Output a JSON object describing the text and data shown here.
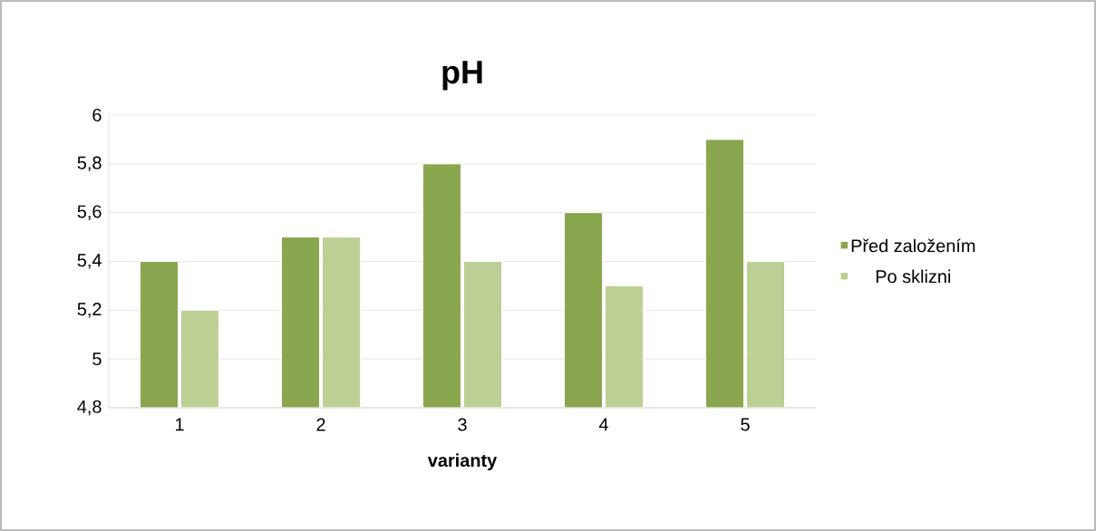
{
  "chart_data": {
    "type": "bar",
    "title": "pH",
    "xlabel": "varianty",
    "categories": [
      "1",
      "2",
      "3",
      "4",
      "5"
    ],
    "series": [
      {
        "name": "Před založením",
        "color": "#8aa64f",
        "values": [
          5.4,
          5.5,
          5.8,
          5.6,
          5.9
        ]
      },
      {
        "name": "Po sklizni",
        "color": "#bcd096",
        "values": [
          5.2,
          5.5,
          5.4,
          5.3,
          5.4
        ]
      }
    ],
    "ylim": [
      4.8,
      6
    ],
    "yticks": [
      {
        "value": 4.8,
        "label": "4,8"
      },
      5,
      {
        "value": 5.2,
        "label": "5,2"
      },
      {
        "value": 5.4,
        "label": "5,4"
      },
      {
        "value": 5.6,
        "label": "5,6"
      },
      {
        "value": 5.8,
        "label": "5,8"
      },
      6
    ],
    "grid": "y",
    "legend": "right"
  }
}
